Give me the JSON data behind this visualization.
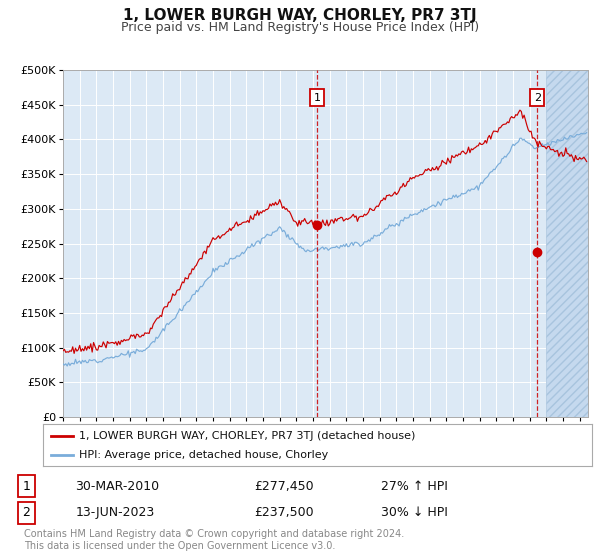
{
  "title": "1, LOWER BURGH WAY, CHORLEY, PR7 3TJ",
  "subtitle": "Price paid vs. HM Land Registry's House Price Index (HPI)",
  "title_fontsize": 11,
  "subtitle_fontsize": 9,
  "background_color": "#ffffff",
  "plot_bg_color": "#dce9f5",
  "grid_color": "#ffffff",
  "red_line_color": "#cc0000",
  "blue_line_color": "#7aadda",
  "marker_color": "#cc0000",
  "ylim": [
    0,
    500000
  ],
  "yticks": [
    0,
    50000,
    100000,
    150000,
    200000,
    250000,
    300000,
    350000,
    400000,
    450000,
    500000
  ],
  "xlim_start": 1995.0,
  "xlim_end": 2026.5,
  "hatch_start": 2024.0,
  "transaction1_x": 2010.25,
  "transaction1_y": 277450,
  "transaction2_x": 2023.46,
  "transaction2_y": 237500,
  "legend_line1": "1, LOWER BURGH WAY, CHORLEY, PR7 3TJ (detached house)",
  "legend_line2": "HPI: Average price, detached house, Chorley",
  "footer": "Contains HM Land Registry data © Crown copyright and database right 2024.\nThis data is licensed under the Open Government Licence v3.0.",
  "table_row1": [
    "1",
    "30-MAR-2010",
    "£277,450",
    "27% ↑ HPI"
  ],
  "table_row2": [
    "2",
    "13-JUN-2023",
    "£237,500",
    "30% ↓ HPI"
  ]
}
